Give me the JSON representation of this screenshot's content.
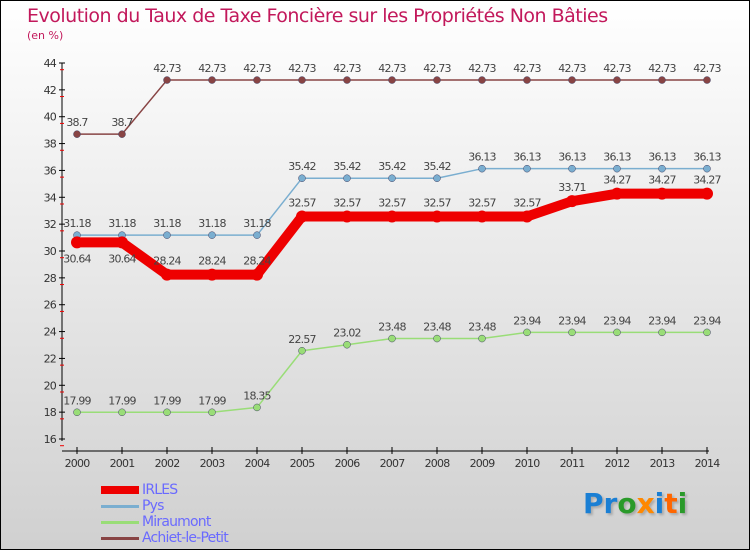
{
  "chart_data": {
    "type": "line",
    "title": "Evolution du Taux de Taxe Foncière sur les Propriétés Non Bâties",
    "ylabel": "(en %)",
    "x": [
      2000,
      2001,
      2002,
      2003,
      2004,
      2005,
      2006,
      2007,
      2008,
      2009,
      2010,
      2011,
      2012,
      2013,
      2014
    ],
    "ylim": [
      16,
      44
    ],
    "yticks": [
      16,
      18,
      20,
      22,
      24,
      26,
      28,
      30,
      32,
      34,
      36,
      38,
      40,
      42,
      44
    ],
    "legend_position": "bottom-left",
    "series": [
      {
        "name": "IRLES",
        "color": "#ee0000",
        "values": [
          30.64,
          30.64,
          28.24,
          28.24,
          28.24,
          32.57,
          32.57,
          32.57,
          32.57,
          32.57,
          32.57,
          33.71,
          34.27,
          34.27,
          34.27
        ]
      },
      {
        "name": "Pys",
        "color": "#7aaed0",
        "values": [
          31.18,
          31.18,
          31.18,
          31.18,
          31.18,
          35.42,
          35.42,
          35.42,
          35.42,
          36.13,
          36.13,
          36.13,
          36.13,
          36.13,
          36.13
        ]
      },
      {
        "name": "Miraumont",
        "color": "#99dd77",
        "values": [
          17.99,
          17.99,
          17.99,
          17.99,
          18.35,
          22.57,
          23.02,
          23.48,
          23.48,
          23.48,
          23.94,
          23.94,
          23.94,
          23.94,
          23.94
        ]
      },
      {
        "name": "Achiet-le-Petit",
        "color": "#884444",
        "values": [
          38.7,
          38.7,
          42.73,
          42.73,
          42.73,
          42.73,
          42.73,
          42.73,
          42.73,
          42.73,
          42.73,
          42.73,
          42.73,
          42.73,
          42.73
        ]
      }
    ]
  },
  "logo": {
    "text": "Proxiti"
  }
}
